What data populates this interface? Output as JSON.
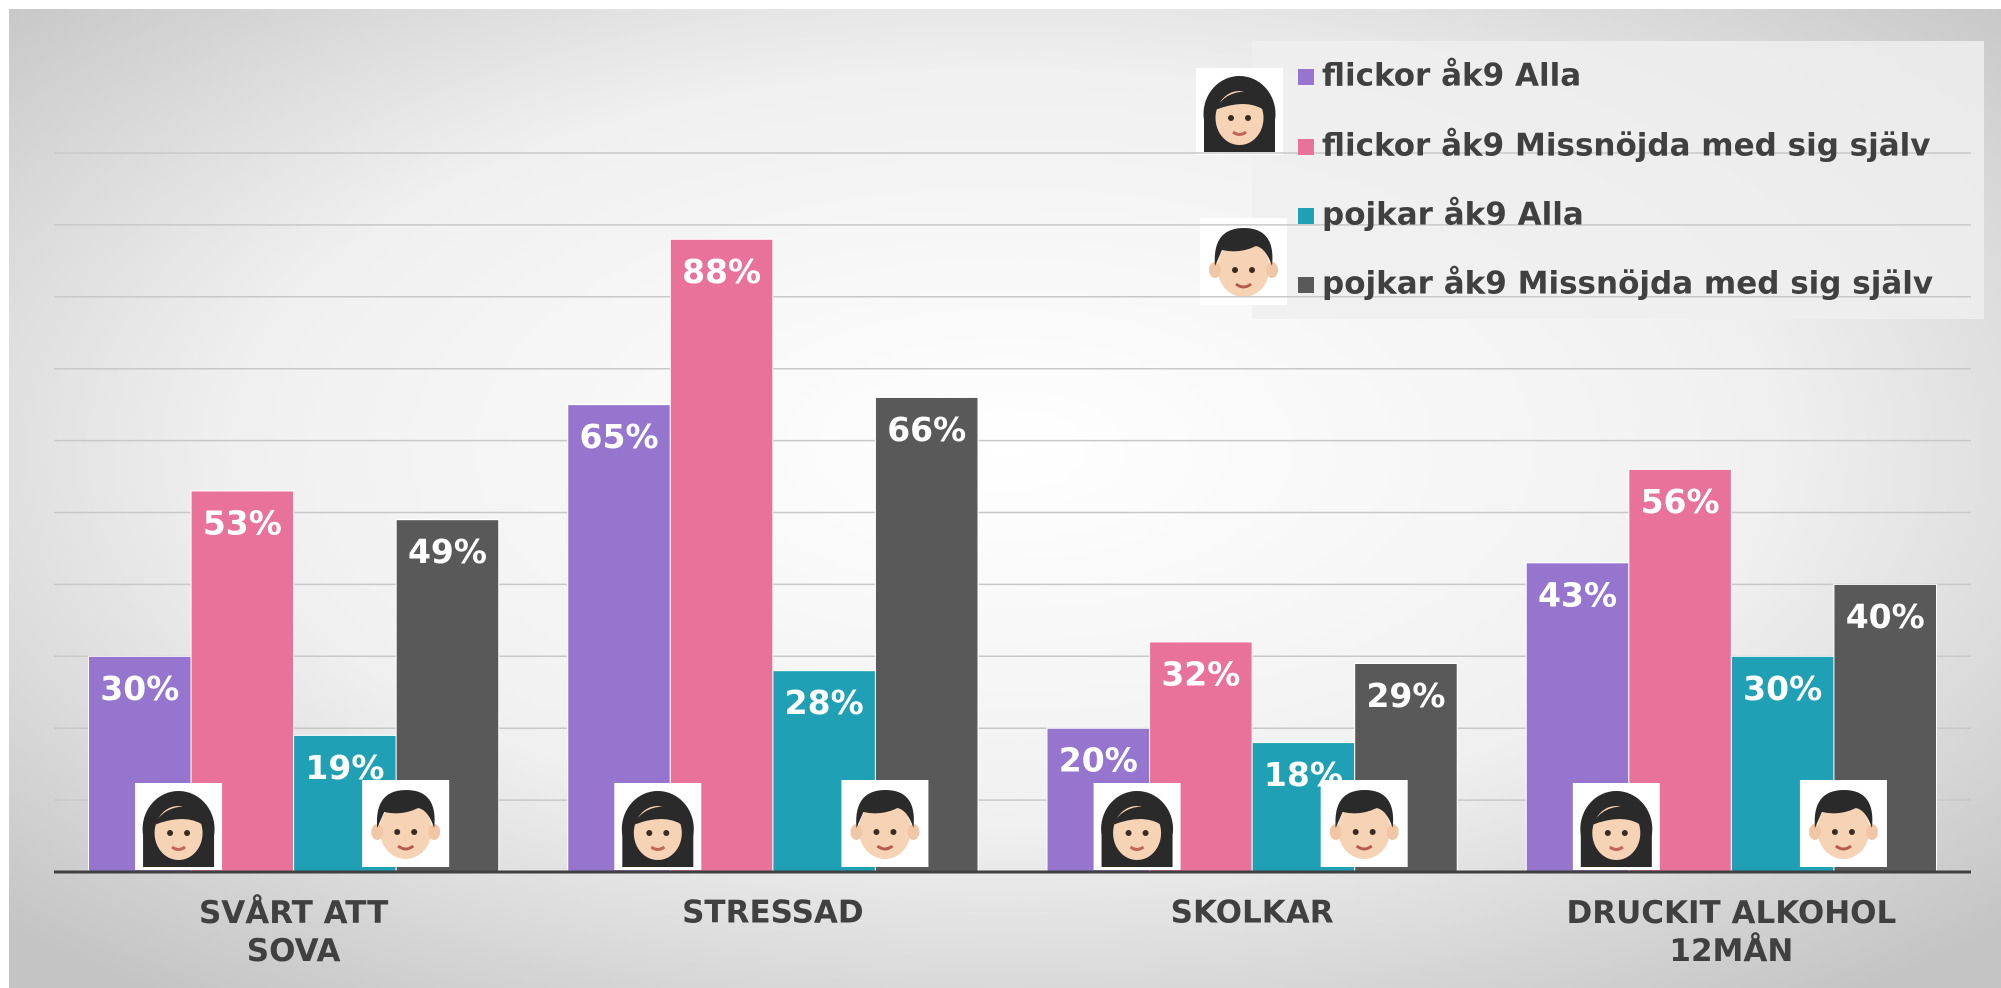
{
  "chart_data": {
    "type": "bar",
    "categories": [
      "SVÅRT ATT SOVA",
      "STRESSAD",
      "SKOLKAR",
      "DRUCKIT ALKOHOL 12MÅN"
    ],
    "series": [
      {
        "name": "flickor åk9 Alla",
        "color": "#9575cd",
        "values": [
          30,
          65,
          20,
          43
        ],
        "value_labels": [
          "30%",
          "65%",
          "20%",
          "43%"
        ]
      },
      {
        "name": "flickor åk9 Missnöjda med sig själv",
        "color": "#e8729a",
        "values": [
          53,
          88,
          32,
          56
        ],
        "value_labels": [
          "53%",
          "88%",
          "32%",
          "56%"
        ]
      },
      {
        "name": "pojkar åk9 Alla",
        "color": "#1fa0b4",
        "values": [
          19,
          28,
          18,
          30
        ],
        "value_labels": [
          "19%",
          "28%",
          "18%",
          "30%"
        ]
      },
      {
        "name": "pojkar åk9 Missnöjda med sig själv",
        "color": "#595959",
        "values": [
          49,
          66,
          29,
          40
        ],
        "value_labels": [
          "49%",
          "66%",
          "29%",
          "40%"
        ]
      }
    ],
    "ylim": [
      0,
      100
    ],
    "yticks": [
      0,
      10,
      20,
      30,
      40,
      50,
      60,
      70,
      80,
      90,
      100
    ],
    "grid": true,
    "legend": "top-right"
  }
}
